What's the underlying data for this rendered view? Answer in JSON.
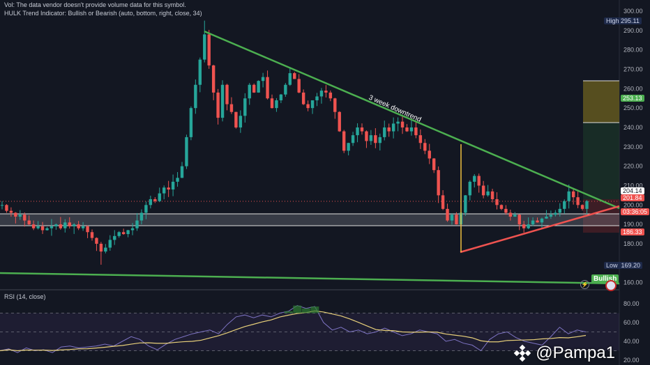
{
  "legend": {
    "vol_note": "Vol: The data vendor doesn't provide volume data for this symbol.",
    "indicator": "HULK Trend Indicator: Bullish or Bearish  (auto, bottom, right, close, 34)",
    "rsi": "RSI (14, close)"
  },
  "annotation": "3 week downtrend",
  "labels": {
    "high_word": "High",
    "high_value": "295.11",
    "low_word": "Low",
    "low_value": "169.20",
    "target": "253.13",
    "prev": "204.14",
    "last": "201.84",
    "countdown": "03:36:05",
    "stop": "186.33",
    "trend": "Bullish"
  },
  "watermark": "@Pampa1",
  "colors": {
    "up": "#26a69a",
    "down": "#ef5350",
    "trendline": "#4caf50",
    "support": "#ef5350",
    "rsi": "#7e74c4",
    "rsi_ma": "#e8d07a"
  },
  "chart_data": [
    {
      "type": "candlestick",
      "ylim": [
        160,
        300
      ],
      "yticks": [
        160,
        180,
        190,
        200,
        210,
        220,
        230,
        240,
        250,
        260,
        270,
        280,
        290,
        300
      ],
      "high": 295.11,
      "low": 169.2,
      "closes": [
        200,
        197,
        196,
        194,
        195,
        192,
        190,
        188,
        189,
        187,
        188,
        189,
        190,
        188,
        191,
        189,
        190,
        188,
        189,
        186,
        183,
        180,
        176,
        178,
        182,
        184,
        186,
        185,
        187,
        188,
        192,
        196,
        200,
        203,
        202,
        206,
        209,
        208,
        212,
        214,
        220,
        235,
        250,
        262,
        275,
        288,
        272,
        258,
        245,
        262,
        252,
        248,
        240,
        246,
        255,
        262,
        258,
        264,
        266,
        255,
        250,
        254,
        257,
        262,
        268,
        265,
        258,
        252,
        250,
        254,
        256,
        259,
        258,
        255,
        248,
        238,
        228,
        232,
        236,
        240,
        238,
        233,
        236,
        232,
        235,
        240,
        238,
        242,
        243,
        240,
        238,
        240,
        236,
        232,
        228,
        224,
        218,
        205,
        198,
        192,
        195,
        190,
        196,
        205,
        212,
        215,
        210,
        205,
        207,
        203,
        200,
        198,
        196,
        194,
        195,
        190,
        188,
        190,
        192,
        191,
        193,
        194,
        195,
        196,
        198,
        202,
        207,
        204,
        200,
        198,
        202
      ]
    },
    {
      "type": "line",
      "title": "RSI (14, close)",
      "ylim": [
        20,
        80
      ],
      "yticks": [
        20,
        40,
        60,
        80
      ],
      "band": [
        30,
        70
      ],
      "rsi": [
        30,
        32,
        28,
        33,
        30,
        31,
        28,
        34,
        35,
        33,
        34,
        35,
        37,
        35,
        40,
        45,
        42,
        35,
        31,
        37,
        42,
        45,
        48,
        50,
        52,
        48,
        58,
        66,
        68,
        65,
        68,
        66,
        70,
        72,
        78,
        75,
        77,
        60,
        52,
        55,
        50,
        52,
        48,
        50,
        54,
        50,
        46,
        48,
        52,
        50,
        48,
        40,
        42,
        38,
        36,
        30,
        42,
        48,
        50,
        44,
        40,
        38,
        36,
        45,
        55,
        48,
        52,
        50
      ]
    }
  ]
}
